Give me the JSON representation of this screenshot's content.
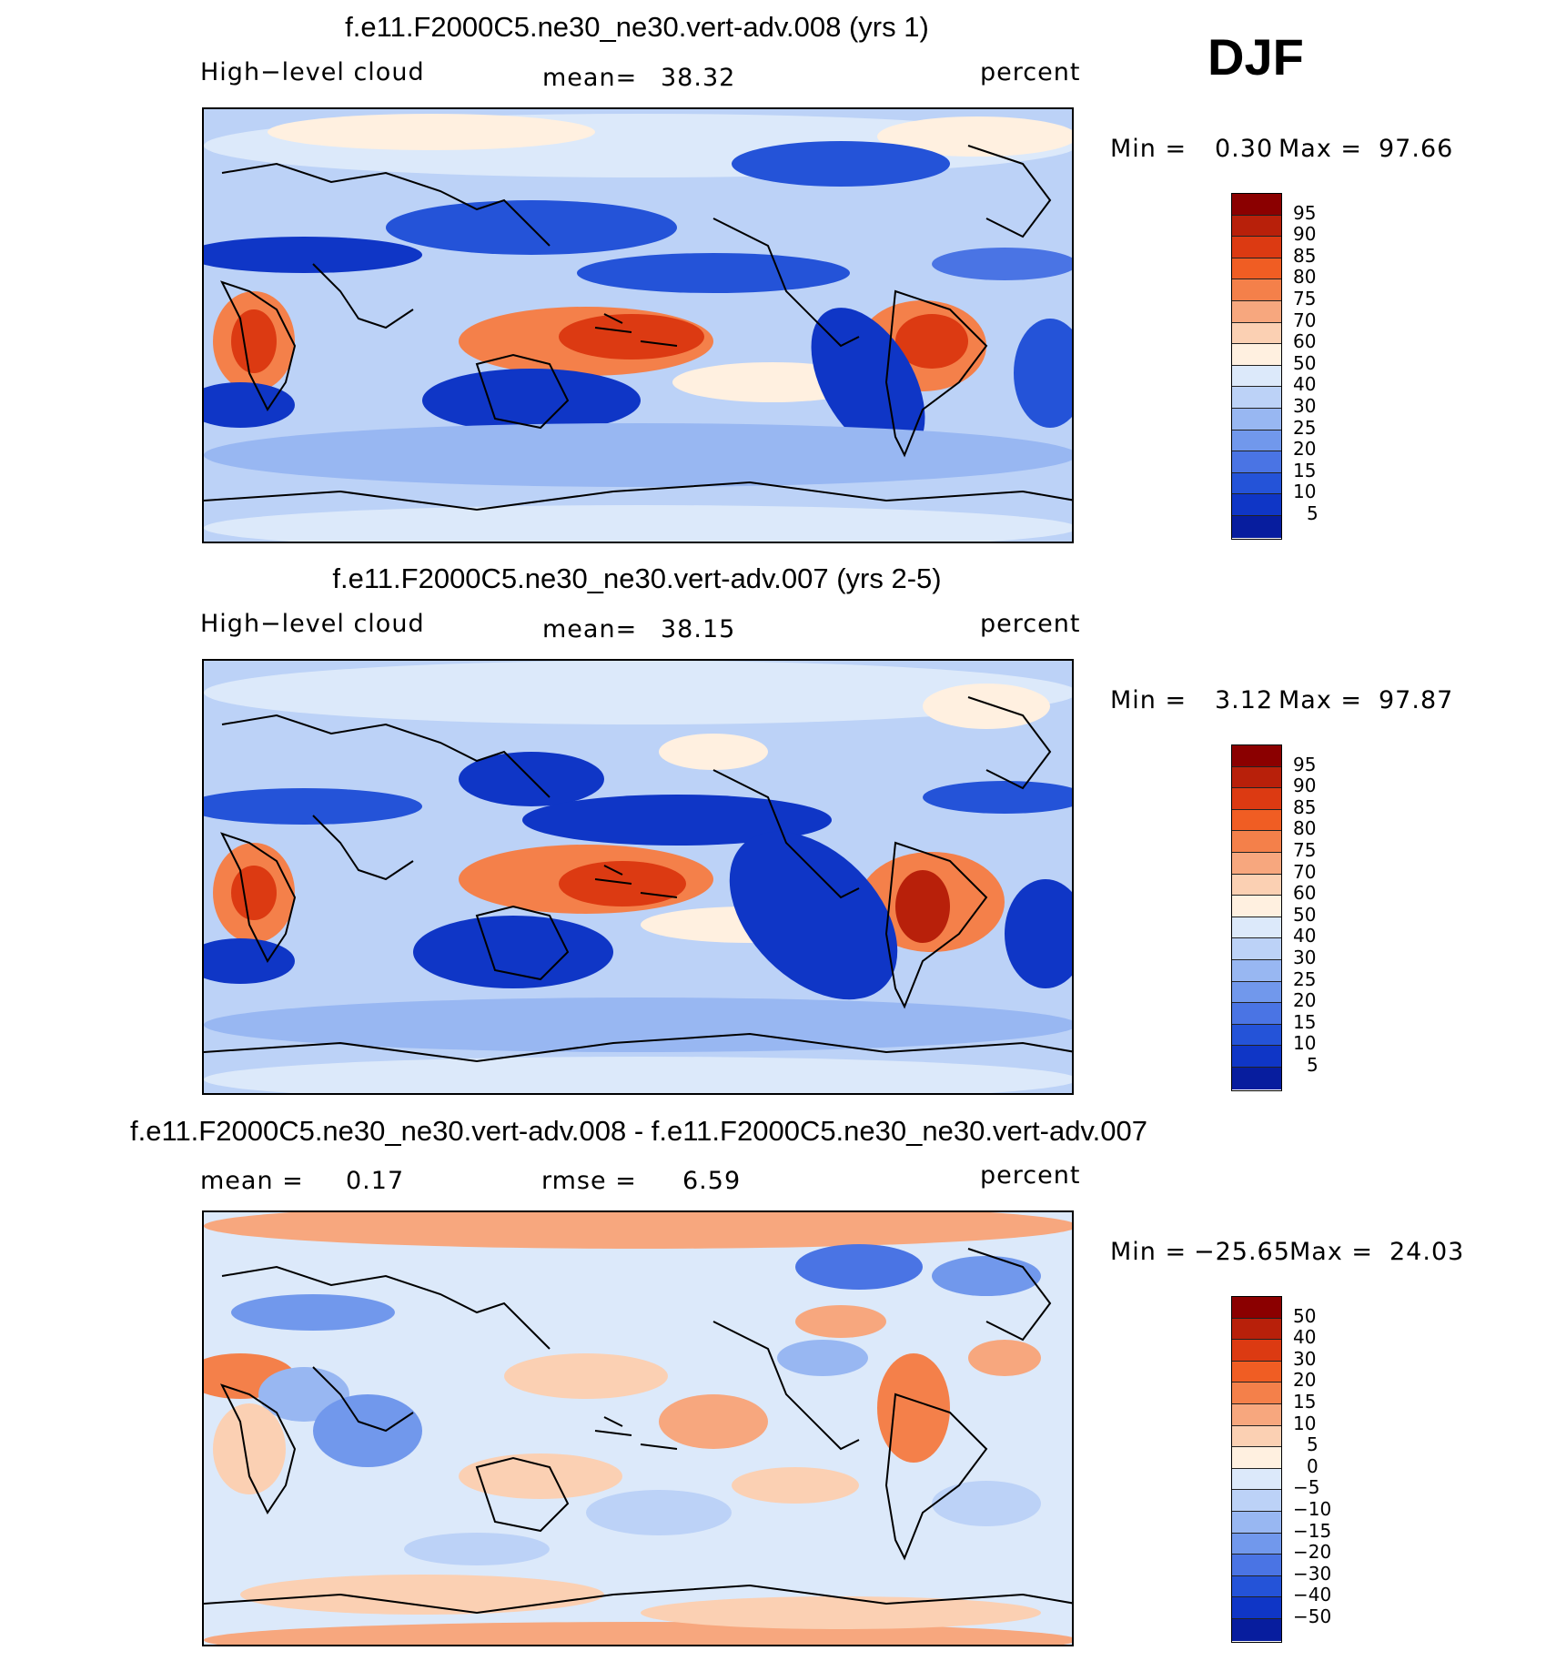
{
  "season": "DJF",
  "chart_data": [
    {
      "type": "heatmap",
      "title": "f.e11.F2000C5.ne30_ne30.vert-adv.008 (yrs 1)",
      "variable": "High−level cloud",
      "units": "percent",
      "stat_label": "mean=",
      "stat_value": "38.32",
      "min_label": "Min =",
      "min_value": "0.30",
      "max_label": "Max =",
      "max_value": "97.66",
      "colorbar_levels": [
        "95",
        "90",
        "85",
        "80",
        "75",
        "70",
        "60",
        "50",
        "40",
        "30",
        "25",
        "20",
        "15",
        "10",
        "5"
      ],
      "colorbar_colors": [
        "#8b0000",
        "#b8200a",
        "#dc3a12",
        "#f05d23",
        "#f4804a",
        "#f7a77e",
        "#fbd0b3",
        "#fff0e0",
        "#dce9fa",
        "#bcd2f7",
        "#98b7f2",
        "#7198ec",
        "#4a74e4",
        "#2453d8",
        "#0f36c6",
        "#071d9e"
      ]
    },
    {
      "type": "heatmap",
      "title": "f.e11.F2000C5.ne30_ne30.vert-adv.007 (yrs 2-5)",
      "variable": "High−level cloud",
      "units": "percent",
      "stat_label": "mean=",
      "stat_value": "38.15",
      "min_label": "Min =",
      "min_value": "3.12",
      "max_label": "Max =",
      "max_value": "97.87",
      "colorbar_levels": [
        "95",
        "90",
        "85",
        "80",
        "75",
        "70",
        "60",
        "50",
        "40",
        "30",
        "25",
        "20",
        "15",
        "10",
        "5"
      ],
      "colorbar_colors": [
        "#8b0000",
        "#b8200a",
        "#dc3a12",
        "#f05d23",
        "#f4804a",
        "#f7a77e",
        "#fbd0b3",
        "#fff0e0",
        "#dce9fa",
        "#bcd2f7",
        "#98b7f2",
        "#7198ec",
        "#4a74e4",
        "#2453d8",
        "#0f36c6",
        "#071d9e"
      ]
    },
    {
      "type": "heatmap",
      "title": "f.e11.F2000C5.ne30_ne30.vert-adv.008 - f.e11.F2000C5.ne30_ne30.vert-adv.007",
      "units": "percent",
      "stat_label": "mean =",
      "stat_value": "0.17",
      "rmse_label": "rmse =",
      "rmse_value": "6.59",
      "min_label": "Min =",
      "min_value": "−25.65",
      "max_label": "Max =",
      "max_value": "24.03",
      "colorbar_levels": [
        "50",
        "40",
        "30",
        "20",
        "15",
        "10",
        "5",
        "0",
        "−5",
        "−10",
        "−15",
        "−20",
        "−30",
        "−40",
        "−50"
      ],
      "colorbar_colors": [
        "#8b0000",
        "#b8200a",
        "#dc3a12",
        "#f05d23",
        "#f4804a",
        "#f7a77e",
        "#fbd0b3",
        "#fff0e0",
        "#dce9fa",
        "#bcd2f7",
        "#98b7f2",
        "#7198ec",
        "#4a74e4",
        "#2453d8",
        "#0f36c6",
        "#071d9e"
      ]
    }
  ]
}
